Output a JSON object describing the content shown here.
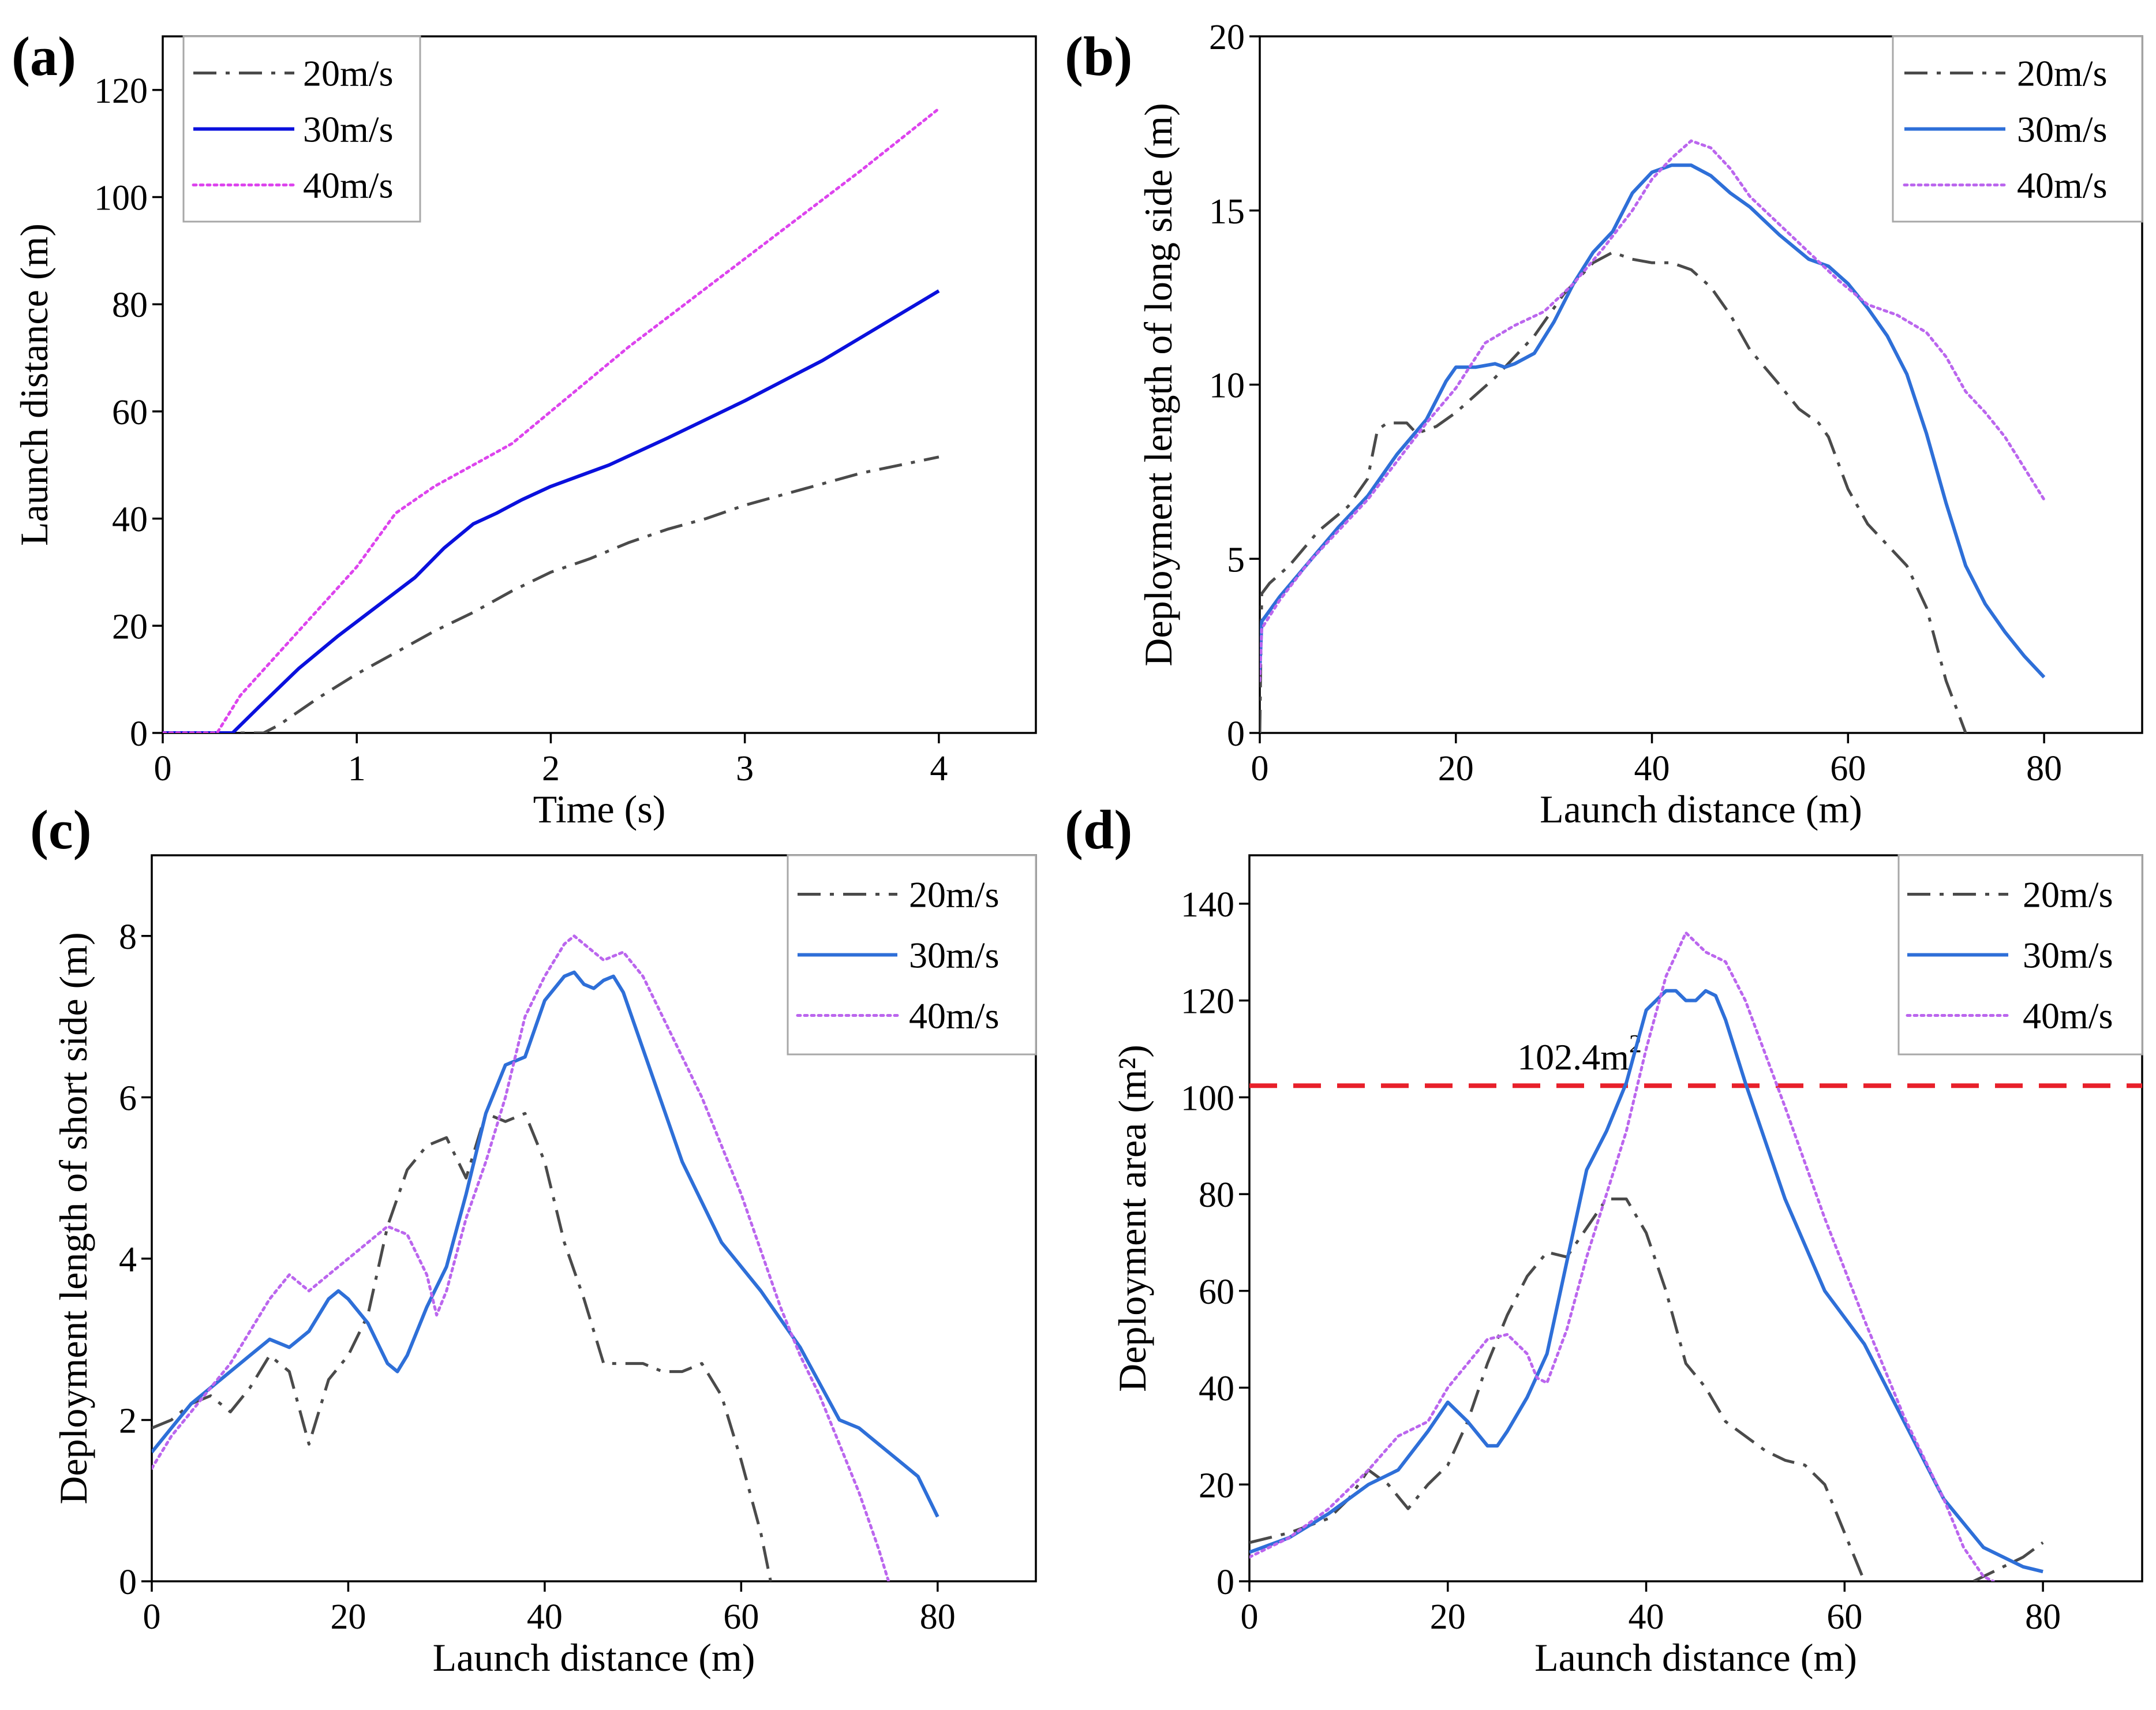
{
  "figure": {
    "panel_count": 4
  },
  "chart_data": [
    {
      "panel": "(a)",
      "type": "line",
      "xlabel": "Time (s)",
      "ylabel": "Launch distance (m)",
      "xlim": [
        0,
        4.5
      ],
      "ylim": [
        0,
        130
      ],
      "xticks": [
        0,
        1,
        2,
        3,
        4
      ],
      "yticks": [
        0,
        20,
        40,
        60,
        80,
        100,
        120
      ],
      "legend": [
        "20m/s",
        "30m/s",
        "40m/s"
      ],
      "legend_position": "top-left",
      "series": [
        {
          "name": "20m/s",
          "color": "#4a4a4a",
          "style": "dashdot",
          "x": [
            0,
            0.52,
            0.6,
            0.8,
            1.0,
            1.2,
            1.4,
            1.6,
            1.8,
            2.0,
            2.2,
            2.4,
            2.6,
            2.8,
            3.0,
            3.2,
            3.4,
            3.6,
            3.8,
            4.0
          ],
          "y": [
            0,
            0,
            1.5,
            6.5,
            11,
            15,
            19,
            22.5,
            26.5,
            30,
            32.5,
            35.5,
            38,
            40,
            42.5,
            44.5,
            46.5,
            48.5,
            50,
            51.5
          ]
        },
        {
          "name": "30m/s",
          "color": "#0a10dd",
          "style": "solid",
          "x": [
            0,
            0.36,
            0.5,
            0.7,
            0.9,
            1.1,
            1.3,
            1.45,
            1.6,
            1.72,
            1.85,
            2.0,
            2.3,
            2.6,
            3.0,
            3.4,
            3.7,
            4.0
          ],
          "y": [
            0,
            0,
            5,
            12,
            18,
            23.5,
            29,
            34.5,
            39,
            41,
            43.5,
            46,
            50,
            55,
            62,
            69.5,
            76,
            82.5
          ]
        },
        {
          "name": "40m/s",
          "color": "#dd44ee",
          "style": "dotted",
          "x": [
            0,
            0.28,
            0.4,
            0.6,
            0.8,
            1.0,
            1.2,
            1.4,
            1.6,
            1.8,
            2.0,
            2.4,
            2.8,
            3.2,
            3.6,
            4.0
          ],
          "y": [
            0,
            0,
            7,
            15,
            23,
            31,
            41,
            46,
            50,
            54,
            60,
            72,
            83,
            94,
            105,
            116.5
          ]
        }
      ]
    },
    {
      "panel": "(b)",
      "type": "line",
      "xlabel": "Launch distance (m)",
      "ylabel": "Deployment length of long side (m)",
      "xlim": [
        0,
        90
      ],
      "ylim": [
        0,
        20
      ],
      "xticks": [
        0,
        20,
        40,
        60,
        80
      ],
      "yticks": [
        0,
        5,
        10,
        15,
        20
      ],
      "legend": [
        "20m/s",
        "30m/s",
        "40m/s"
      ],
      "legend_position": "top-right",
      "series": [
        {
          "name": "20m/s",
          "color": "#4a4a4a",
          "style": "dashdot",
          "x": [
            0,
            0.2,
            1,
            3,
            6,
            9,
            11,
            12,
            13,
            15,
            16,
            18,
            20,
            24,
            28,
            31,
            34,
            36,
            38,
            40,
            42,
            44,
            46,
            48,
            50,
            53,
            55,
            57,
            58,
            60,
            62,
            64,
            66,
            68,
            70,
            72
          ],
          "y": [
            0,
            4,
            4.3,
            4.8,
            5.8,
            6.5,
            7.3,
            8.7,
            8.9,
            8.9,
            8.6,
            8.8,
            9.2,
            10.2,
            11.4,
            12.6,
            13.5,
            13.8,
            13.6,
            13.5,
            13.5,
            13.3,
            12.8,
            12,
            11,
            10,
            9.3,
            8.9,
            8.5,
            7,
            6,
            5.4,
            4.8,
            3.6,
            1.5,
            0
          ]
        },
        {
          "name": "30m/s",
          "color": "#2e6fd8",
          "style": "solid",
          "x": [
            0,
            0.2,
            2,
            5,
            8,
            11,
            14,
            17,
            19,
            20,
            22,
            24,
            25,
            26,
            28,
            30,
            32,
            34,
            36,
            38,
            40,
            42,
            44,
            46,
            48,
            50,
            53,
            56,
            58,
            60,
            62,
            64,
            66,
            68,
            70,
            72,
            74,
            76,
            78,
            80
          ],
          "y": [
            1.8,
            3.2,
            3.9,
            4.9,
            5.9,
            6.8,
            8.0,
            9.0,
            10.1,
            10.5,
            10.5,
            10.6,
            10.5,
            10.6,
            10.9,
            11.8,
            12.9,
            13.8,
            14.4,
            15.5,
            16.1,
            16.3,
            16.3,
            16.0,
            15.5,
            15.1,
            14.3,
            13.6,
            13.4,
            12.9,
            12.2,
            11.4,
            10.3,
            8.6,
            6.6,
            4.8,
            3.7,
            2.9,
            2.2,
            1.6
          ]
        },
        {
          "name": "40m/s",
          "color": "#bb66ee",
          "style": "dotted",
          "x": [
            0,
            0.2,
            2,
            5,
            8,
            11,
            14,
            17,
            20,
            23,
            26,
            29,
            32,
            35,
            38,
            40,
            42,
            44,
            46,
            48,
            50,
            53,
            56,
            59,
            62,
            65,
            68,
            70,
            72,
            74,
            76,
            78,
            80
          ],
          "y": [
            1.5,
            3.0,
            3.8,
            4.9,
            5.8,
            6.7,
            7.8,
            8.9,
            9.9,
            11.2,
            11.7,
            12.1,
            12.9,
            13.9,
            15.0,
            15.9,
            16.5,
            17.0,
            16.8,
            16.2,
            15.4,
            14.6,
            13.8,
            13.0,
            12.3,
            12.0,
            11.5,
            10.8,
            9.8,
            9.2,
            8.5,
            7.6,
            6.7
          ]
        }
      ]
    },
    {
      "panel": "(c)",
      "type": "line",
      "xlabel": "Launch distance (m)",
      "ylabel": "Deployment length of short side (m)",
      "xlim": [
        0,
        90
      ],
      "ylim": [
        0,
        9
      ],
      "xticks": [
        0,
        20,
        40,
        60,
        80
      ],
      "yticks": [
        0,
        2,
        4,
        6,
        8
      ],
      "legend": [
        "20m/s",
        "30m/s",
        "40m/s"
      ],
      "legend_position": "top-right",
      "series": [
        {
          "name": "20m/s",
          "color": "#4a4a4a",
          "style": "dashdot",
          "x": [
            0,
            2,
            4,
            6,
            8,
            10,
            12,
            14,
            16,
            18,
            20,
            22,
            24,
            26,
            28,
            30,
            32,
            34,
            36,
            38,
            40,
            42,
            44,
            46,
            48,
            50,
            52,
            54,
            56,
            58,
            60,
            62,
            63
          ],
          "y": [
            1.9,
            2.0,
            2.2,
            2.3,
            2.1,
            2.4,
            2.8,
            2.6,
            1.7,
            2.5,
            2.8,
            3.3,
            4.4,
            5.1,
            5.4,
            5.5,
            5.0,
            5.8,
            5.7,
            5.8,
            5.2,
            4.2,
            3.5,
            2.7,
            2.7,
            2.7,
            2.6,
            2.6,
            2.7,
            2.3,
            1.5,
            0.6,
            0
          ]
        },
        {
          "name": "30m/s",
          "color": "#2e6fd8",
          "style": "solid",
          "x": [
            0,
            2,
            4,
            6,
            8,
            10,
            12,
            14,
            16,
            18,
            19,
            20,
            22,
            24,
            25,
            26,
            28,
            30,
            32,
            34,
            36,
            38,
            40,
            42,
            43,
            44,
            45,
            46,
            47,
            48,
            50,
            54,
            58,
            62,
            66,
            70,
            72,
            74,
            76,
            78,
            80
          ],
          "y": [
            1.6,
            1.9,
            2.2,
            2.4,
            2.6,
            2.8,
            3.0,
            2.9,
            3.1,
            3.5,
            3.6,
            3.5,
            3.2,
            2.7,
            2.6,
            2.8,
            3.4,
            3.9,
            4.8,
            5.8,
            6.4,
            6.5,
            7.2,
            7.5,
            7.55,
            7.4,
            7.35,
            7.45,
            7.5,
            7.3,
            6.6,
            5.2,
            4.2,
            3.6,
            2.9,
            2.0,
            1.9,
            1.7,
            1.5,
            1.3,
            0.8
          ]
        },
        {
          "name": "40m/s",
          "color": "#bb66ee",
          "style": "dotted",
          "x": [
            0,
            2,
            4,
            6,
            8,
            10,
            12,
            14,
            16,
            18,
            20,
            22,
            24,
            26,
            28,
            29,
            30,
            32,
            34,
            36,
            38,
            40,
            42,
            43,
            44,
            46,
            48,
            50,
            52,
            54,
            56,
            58,
            60,
            62,
            64,
            66,
            68,
            70,
            72,
            74,
            75
          ],
          "y": [
            1.4,
            1.8,
            2.1,
            2.4,
            2.7,
            3.1,
            3.5,
            3.8,
            3.6,
            3.8,
            4.0,
            4.2,
            4.4,
            4.3,
            3.8,
            3.3,
            3.6,
            4.5,
            5.2,
            6.0,
            7.0,
            7.5,
            7.9,
            8.0,
            7.9,
            7.7,
            7.8,
            7.5,
            7.0,
            6.5,
            6.0,
            5.4,
            4.8,
            4.1,
            3.4,
            2.8,
            2.3,
            1.7,
            1.1,
            0.4,
            0
          ]
        }
      ]
    },
    {
      "panel": "(d)",
      "type": "line",
      "xlabel": "Launch distance (m)",
      "ylabel": "Deployment area (m²)",
      "xlim": [
        0,
        90
      ],
      "ylim": [
        0,
        150
      ],
      "xticks": [
        0,
        20,
        40,
        60,
        80
      ],
      "yticks": [
        0,
        20,
        40,
        60,
        80,
        100,
        120,
        140
      ],
      "legend": [
        "20m/s",
        "30m/s",
        "40m/s"
      ],
      "legend_position": "top-right",
      "reference_line": {
        "value": 102.4,
        "label": "102.4m",
        "superscript": "2",
        "color": "#e8202a",
        "style": "dashed"
      },
      "series": [
        {
          "name": "20m/s",
          "color": "#4a4a4a",
          "style": "dashdot",
          "x": [
            0,
            4,
            8,
            10,
            12,
            14,
            16,
            18,
            20,
            22,
            24,
            26,
            28,
            30,
            32,
            34,
            36,
            38,
            40,
            42,
            44,
            46,
            48,
            50,
            52,
            54,
            56,
            58,
            60,
            62
          ],
          "y": [
            8,
            10,
            13,
            17,
            23,
            20,
            15,
            20,
            24,
            33,
            45,
            55,
            63,
            68,
            67,
            73,
            79,
            79,
            72,
            60,
            45,
            40,
            33,
            30,
            27,
            25,
            24,
            20,
            10,
            0
          ]
        },
        {
          "name": "20m/s",
          "color": "#4a4a4a",
          "style": "dashdot",
          "x": [
            73,
            76,
            78,
            80
          ],
          "y": [
            0,
            3,
            5,
            8
          ]
        },
        {
          "name": "30m/s",
          "color": "#2e6fd8",
          "style": "solid",
          "x": [
            0,
            4,
            8,
            12,
            15,
            18,
            20,
            22,
            24,
            25,
            26,
            28,
            30,
            32,
            34,
            36,
            38,
            40,
            42,
            43,
            44,
            45,
            46,
            47,
            48,
            50,
            54,
            58,
            62,
            66,
            70,
            74,
            78,
            80
          ],
          "y": [
            6,
            9,
            14,
            20,
            23,
            31,
            37,
            33,
            28,
            28,
            31,
            38,
            47,
            66,
            85,
            93,
            103,
            118,
            122,
            122,
            120,
            120,
            122,
            121,
            116,
            103,
            79,
            60,
            49,
            33,
            17,
            7,
            3,
            2
          ]
        },
        {
          "name": "40m/s",
          "color": "#bb66ee",
          "style": "dotted",
          "x": [
            0,
            4,
            8,
            12,
            15,
            18,
            20,
            22,
            24,
            26,
            28,
            29,
            30,
            32,
            34,
            36,
            38,
            40,
            42,
            44,
            46,
            48,
            50,
            54,
            58,
            62,
            66,
            70,
            72,
            74,
            75
          ],
          "y": [
            5,
            9,
            15,
            23,
            30,
            33,
            40,
            45,
            50,
            51,
            47,
            42,
            41,
            52,
            67,
            80,
            93,
            110,
            125,
            134,
            130,
            128,
            120,
            98,
            75,
            54,
            34,
            17,
            7,
            1,
            0
          ]
        }
      ]
    }
  ]
}
